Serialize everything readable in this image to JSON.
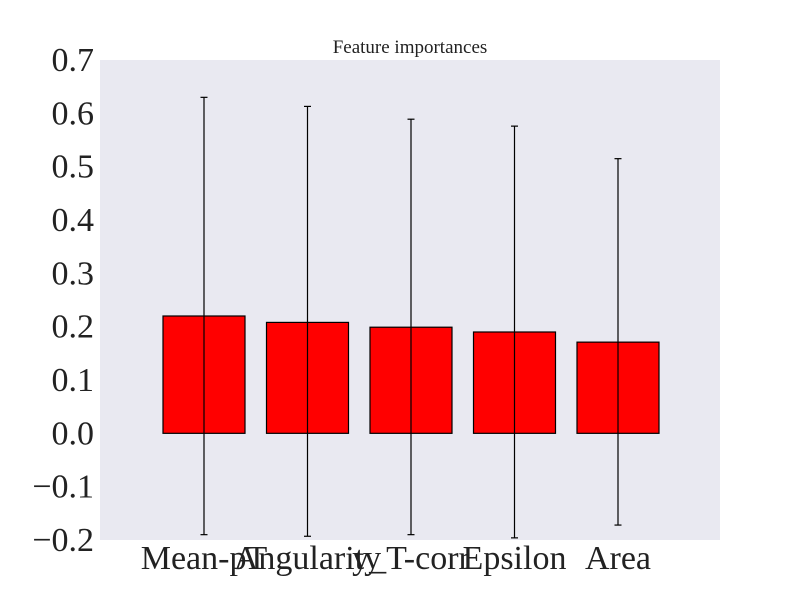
{
  "chart_data": {
    "type": "bar",
    "title": "Feature importances",
    "xlabel": "",
    "ylabel": "",
    "categories": [
      "Mean-pT",
      "Angularity",
      "y_T-corr",
      "Epsilon",
      "Area"
    ],
    "values": [
      0.22,
      0.208,
      0.199,
      0.19,
      0.171
    ],
    "error_bars": {
      "upper": [
        0.63,
        0.613,
        0.589,
        0.576,
        0.515
      ],
      "lower": [
        -0.19,
        -0.193,
        -0.19,
        -0.196,
        -0.172
      ]
    },
    "ylim": [
      -0.2,
      0.7
    ],
    "yticks": [
      "−0.2",
      "−0.1",
      "0.0",
      "0.1",
      "0.2",
      "0.3",
      "0.4",
      "0.5",
      "0.6",
      "0.7"
    ],
    "grid": false,
    "legend": "none",
    "colors": {
      "bar": "#ff0000",
      "edge": "#000000",
      "plot_background": "#e9e9f1",
      "text": "#222222"
    }
  }
}
